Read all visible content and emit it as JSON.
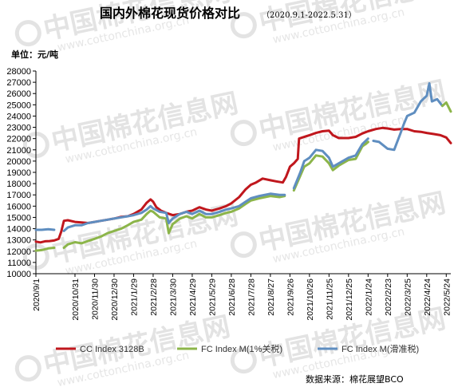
{
  "watermark": {
    "brand": "中国棉花信息网",
    "site": "www.cottonchina.org.cn"
  },
  "chart_data": {
    "type": "line",
    "title": "国内外棉花现货价格对比",
    "subtitle": "（2020.9.1-2022.5.31）",
    "unit_label": "单位：元/吨",
    "source": "数据来源：棉花展望BCO",
    "ylim": [
      10000,
      28000
    ],
    "y_ticks": [
      10000,
      11000,
      12000,
      13000,
      14000,
      15000,
      16000,
      17000,
      18000,
      19000,
      20000,
      21000,
      22000,
      23000,
      24000,
      25000,
      26000,
      27000,
      28000
    ],
    "x_ticks": [
      "2020/9/1",
      "2020/10/31",
      "2020/11/30",
      "2020/12/30",
      "2021/1/29",
      "2021/2/28",
      "2021/3/30",
      "2021/4/29",
      "2021/5/29",
      "2021/6/28",
      "2021/7/28",
      "2021/8/27",
      "2021/9/26",
      "2021/10/26",
      "2021/11/25",
      "2021/12/25",
      "2022/1/24",
      "2022/2/23",
      "2022/3/25",
      "2022/4/24",
      "2022/5/24"
    ],
    "x_range": [
      "2020-09-01",
      "2022-05-31"
    ],
    "grid": false,
    "legend_position": "bottom",
    "series": [
      {
        "name": "CC Index 3128B",
        "color": "#c0171d",
        "points": [
          [
            "2020-09-01",
            12850
          ],
          [
            "2020-09-08",
            12780
          ],
          [
            "2020-09-15",
            12880
          ],
          [
            "2020-09-22",
            12900
          ],
          [
            "2020-09-29",
            12950
          ],
          [
            "2020-10-06",
            13100
          ],
          [
            "2020-10-10",
            13750
          ],
          [
            "2020-10-14",
            14700
          ],
          [
            "2020-10-20",
            14750
          ],
          [
            "2020-10-31",
            14600
          ],
          [
            "2020-11-10",
            14550
          ],
          [
            "2020-11-20",
            14500
          ],
          [
            "2020-11-30",
            14600
          ],
          [
            "2020-12-10",
            14700
          ],
          [
            "2020-12-20",
            14800
          ],
          [
            "2020-12-30",
            14900
          ],
          [
            "2021-01-10",
            15050
          ],
          [
            "2021-01-20",
            15100
          ],
          [
            "2021-01-29",
            15300
          ],
          [
            "2021-02-10",
            15700
          ],
          [
            "2021-02-18",
            16300
          ],
          [
            "2021-02-24",
            16600
          ],
          [
            "2021-02-28",
            16400
          ],
          [
            "2021-03-05",
            15900
          ],
          [
            "2021-03-12",
            15600
          ],
          [
            "2021-03-20",
            15400
          ],
          [
            "2021-03-30",
            15200
          ],
          [
            "2021-04-10",
            15300
          ],
          [
            "2021-04-20",
            15500
          ],
          [
            "2021-04-29",
            15600
          ],
          [
            "2021-05-10",
            15900
          ],
          [
            "2021-05-20",
            15700
          ],
          [
            "2021-05-29",
            15600
          ],
          [
            "2021-06-10",
            15800
          ],
          [
            "2021-06-20",
            16000
          ],
          [
            "2021-06-28",
            16250
          ],
          [
            "2021-07-10",
            16800
          ],
          [
            "2021-07-20",
            17500
          ],
          [
            "2021-07-28",
            17900
          ],
          [
            "2021-08-05",
            18100
          ],
          [
            "2021-08-15",
            18450
          ],
          [
            "2021-08-27",
            18300
          ],
          [
            "2021-09-05",
            18200
          ],
          [
            "2021-09-15",
            18100
          ],
          [
            "2021-09-20",
            18600
          ],
          [
            "2021-09-26",
            19500
          ],
          [
            "2021-10-02",
            19800
          ],
          [
            "2021-10-08",
            20200
          ],
          [
            "2021-10-10",
            22000
          ],
          [
            "2021-10-15",
            22100
          ],
          [
            "2021-10-26",
            22300
          ],
          [
            "2021-11-05",
            22500
          ],
          [
            "2021-11-15",
            22650
          ],
          [
            "2021-11-25",
            22700
          ],
          [
            "2021-12-01",
            22300
          ],
          [
            "2021-12-10",
            22050
          ],
          [
            "2021-12-20",
            22050
          ],
          [
            "2021-12-25",
            22050
          ],
          [
            "2022-01-05",
            22150
          ],
          [
            "2022-01-15",
            22450
          ],
          [
            "2022-01-24",
            22650
          ],
          [
            "2022-02-05",
            22850
          ],
          [
            "2022-02-15",
            22950
          ],
          [
            "2022-02-23",
            22900
          ],
          [
            "2022-03-05",
            22800
          ],
          [
            "2022-03-15",
            22850
          ],
          [
            "2022-03-25",
            22850
          ],
          [
            "2022-04-05",
            22650
          ],
          [
            "2022-04-15",
            22600
          ],
          [
            "2022-04-24",
            22500
          ],
          [
            "2022-05-05",
            22400
          ],
          [
            "2022-05-15",
            22300
          ],
          [
            "2022-05-24",
            22100
          ],
          [
            "2022-05-31",
            21600
          ]
        ]
      },
      {
        "name": "FC Index M(1%关税)",
        "color": "#8cb54a",
        "points": [
          [
            "2020-09-01",
            12050
          ],
          [
            "2020-09-10",
            12100
          ],
          [
            "2020-09-20",
            12250
          ],
          [
            "2020-09-29",
            12300
          ],
          [
            "null",
            null
          ],
          [
            "2020-10-14",
            12300
          ],
          [
            "2020-10-20",
            12600
          ],
          [
            "2020-10-31",
            12800
          ],
          [
            "2020-11-10",
            12700
          ],
          [
            "2020-11-20",
            12900
          ],
          [
            "2020-11-30",
            13100
          ],
          [
            "2020-12-10",
            13300
          ],
          [
            "2020-12-20",
            13600
          ],
          [
            "2020-12-30",
            13800
          ],
          [
            "2021-01-10",
            14000
          ],
          [
            "2021-01-20",
            14300
          ],
          [
            "2021-01-29",
            14600
          ],
          [
            "2021-02-10",
            14800
          ],
          [
            "2021-02-18",
            15300
          ],
          [
            "2021-02-24",
            15600
          ],
          [
            "2021-02-28",
            15500
          ],
          [
            "2021-03-10",
            15000
          ],
          [
            "2021-03-20",
            14900
          ],
          [
            "2021-03-24",
            13600
          ],
          [
            "2021-03-30",
            14400
          ],
          [
            "2021-04-10",
            14900
          ],
          [
            "2021-04-20",
            15100
          ],
          [
            "2021-04-29",
            14900
          ],
          [
            "2021-05-10",
            15300
          ],
          [
            "2021-05-20",
            15000
          ],
          [
            "2021-05-29",
            15000
          ],
          [
            "2021-06-10",
            15200
          ],
          [
            "2021-06-20",
            15400
          ],
          [
            "2021-06-28",
            15500
          ],
          [
            "2021-07-10",
            15800
          ],
          [
            "2021-07-20",
            16200
          ],
          [
            "2021-07-28",
            16500
          ],
          [
            "2021-08-10",
            16700
          ],
          [
            "2021-08-27",
            16900
          ],
          [
            "2021-09-10",
            16800
          ],
          [
            "2021-09-18",
            16900
          ],
          [
            "null",
            null
          ],
          [
            "2021-10-02",
            17400
          ],
          [
            "2021-10-12",
            18700
          ],
          [
            "2021-10-18",
            19500
          ],
          [
            "2021-10-26",
            19800
          ],
          [
            "2021-11-05",
            20500
          ],
          [
            "2021-11-15",
            20400
          ],
          [
            "2021-11-25",
            19800
          ],
          [
            "2021-12-01",
            19200
          ],
          [
            "2021-12-10",
            19600
          ],
          [
            "2021-12-25",
            20100
          ],
          [
            "2022-01-05",
            20200
          ],
          [
            "2022-01-15",
            21300
          ],
          [
            "2022-01-24",
            21700
          ]
        ]
      },
      {
        "name": "FC Index M(滑准税)",
        "color": "#5f8ec0",
        "points": [
          [
            "2020-09-01",
            13900
          ],
          [
            "2020-09-10",
            13900
          ],
          [
            "2020-09-20",
            13950
          ],
          [
            "2020-09-29",
            13900
          ],
          [
            "null",
            null
          ],
          [
            "2020-10-14",
            13800
          ],
          [
            "2020-10-20",
            14100
          ],
          [
            "2020-10-31",
            14300
          ],
          [
            "2020-11-10",
            14300
          ],
          [
            "2020-11-20",
            14500
          ],
          [
            "2020-11-30",
            14600
          ],
          [
            "2020-12-10",
            14700
          ],
          [
            "2020-12-20",
            14800
          ],
          [
            "2020-12-30",
            14900
          ],
          [
            "2021-01-10",
            15000
          ],
          [
            "2021-01-20",
            15100
          ],
          [
            "2021-01-29",
            15200
          ],
          [
            "2021-02-10",
            15400
          ],
          [
            "2021-02-18",
            15700
          ],
          [
            "2021-02-24",
            16000
          ],
          [
            "2021-02-28",
            15800
          ],
          [
            "2021-03-10",
            15500
          ],
          [
            "2021-03-20",
            15400
          ],
          [
            "2021-03-24",
            14500
          ],
          [
            "2021-03-30",
            14900
          ],
          [
            "2021-04-10",
            15300
          ],
          [
            "2021-04-20",
            15500
          ],
          [
            "2021-04-29",
            15300
          ],
          [
            "2021-05-10",
            15600
          ],
          [
            "2021-05-20",
            15300
          ],
          [
            "2021-05-29",
            15300
          ],
          [
            "2021-06-10",
            15500
          ],
          [
            "2021-06-20",
            15700
          ],
          [
            "2021-06-28",
            15800
          ],
          [
            "2021-07-10",
            16000
          ],
          [
            "2021-07-20",
            16400
          ],
          [
            "2021-07-28",
            16700
          ],
          [
            "2021-08-10",
            16900
          ],
          [
            "2021-08-27",
            17100
          ],
          [
            "2021-09-10",
            17000
          ],
          [
            "2021-09-18",
            17000
          ],
          [
            "null",
            null
          ],
          [
            "2021-10-02",
            17600
          ],
          [
            "2021-10-12",
            19000
          ],
          [
            "2021-10-18",
            20000
          ],
          [
            "2021-10-26",
            20300
          ],
          [
            "2021-11-05",
            21000
          ],
          [
            "2021-11-15",
            20900
          ],
          [
            "2021-11-25",
            20300
          ],
          [
            "2021-12-01",
            19500
          ],
          [
            "2021-12-10",
            19800
          ],
          [
            "2021-12-25",
            20300
          ],
          [
            "2022-01-05",
            20500
          ],
          [
            "2022-01-15",
            21500
          ],
          [
            "2022-01-24",
            22000
          ],
          [
            "null",
            null
          ],
          [
            "2022-02-01",
            21800
          ],
          [
            "2022-02-10",
            21700
          ],
          [
            "2022-02-23",
            21100
          ],
          [
            "2022-03-05",
            21000
          ],
          [
            "2022-03-15",
            22500
          ],
          [
            "2022-03-20",
            23300
          ],
          [
            "2022-03-25",
            24000
          ],
          [
            "2022-04-05",
            24300
          ],
          [
            "2022-04-15",
            25300
          ],
          [
            "2022-04-24",
            25800
          ],
          [
            "2022-04-28",
            26900
          ],
          [
            "2022-05-02",
            25300
          ],
          [
            "2022-05-10",
            25500
          ],
          [
            "2022-05-18",
            24900
          ]
        ]
      },
      {
        "name": "",
        "color": "#8cb54a",
        "points": [
          [
            "2022-05-18",
            24900
          ],
          [
            "2022-05-24",
            25200
          ],
          [
            "2022-05-31",
            24400
          ]
        ]
      },
      {
        "name": "",
        "color": "#8cb54a",
        "points": [
          [
            "2022-01-20",
            21500
          ],
          [
            "2022-01-24",
            21700
          ]
        ]
      }
    ]
  },
  "legend": [
    {
      "label": "CC Index 3128B",
      "color": "#c0171d"
    },
    {
      "label": "FC Index M(1%关税)",
      "color": "#8cb54a"
    },
    {
      "label": "FC Index M(滑准税)",
      "color": "#5f8ec0"
    }
  ]
}
